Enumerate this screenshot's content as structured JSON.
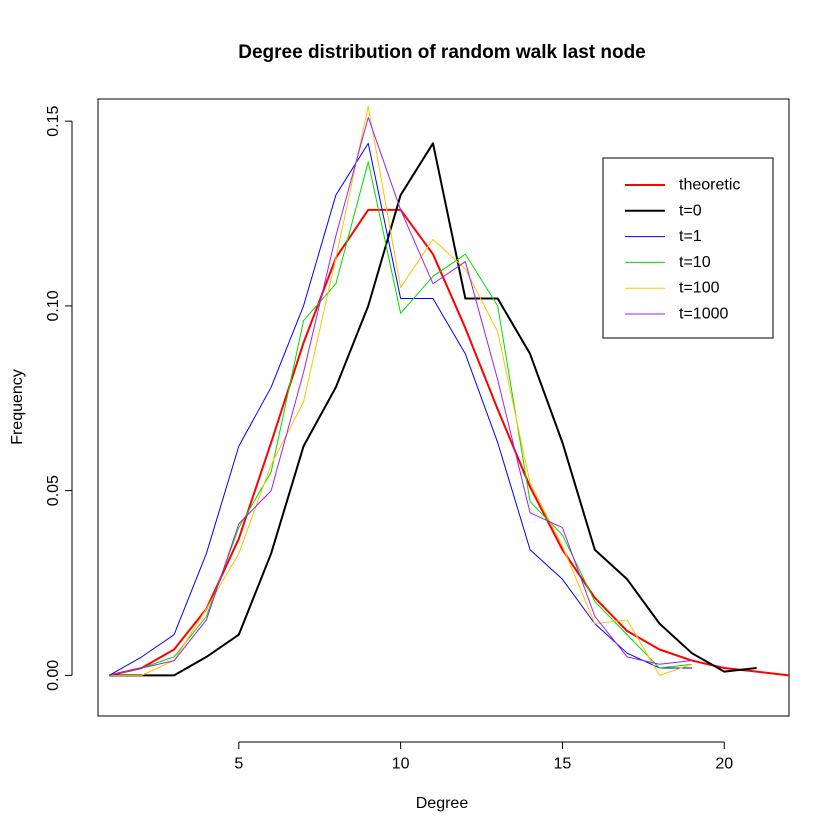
{
  "chart_data": {
    "type": "line",
    "title": "Degree distribution of random walk last node",
    "xlabel": "Degree",
    "ylabel": "Frequency",
    "xlim": [
      0.65,
      22
    ],
    "ylim": [
      -0.011,
      0.156
    ],
    "xticks": [
      5,
      10,
      15,
      20
    ],
    "yticks": [
      0.0,
      0.05,
      0.1,
      0.15
    ],
    "ytick_labels": [
      "0.00",
      "0.05",
      "0.10",
      "0.15"
    ],
    "legend_position": "top-right",
    "grid": false,
    "series": [
      {
        "name": "theoretic",
        "color": "#ff0000",
        "width": 2,
        "x": [
          1,
          2,
          3,
          4,
          5,
          6,
          7,
          8,
          9,
          10,
          11,
          12,
          13,
          14,
          15,
          16,
          17,
          18,
          19,
          20,
          21,
          22
        ],
        "y": [
          0.0,
          0.002,
          0.007,
          0.018,
          0.037,
          0.063,
          0.09,
          0.113,
          0.126,
          0.126,
          0.114,
          0.094,
          0.072,
          0.051,
          0.034,
          0.021,
          0.012,
          0.007,
          0.004,
          0.002,
          0.001,
          0.0
        ]
      },
      {
        "name": "t=0",
        "color": "#000000",
        "width": 2,
        "x": [
          1,
          2,
          3,
          4,
          5,
          6,
          7,
          8,
          9,
          10,
          11,
          12,
          13,
          14,
          15,
          16,
          17,
          18,
          19,
          20,
          21
        ],
        "y": [
          0.0,
          0.0,
          0.0,
          0.005,
          0.011,
          0.033,
          0.062,
          0.078,
          0.1,
          0.13,
          0.144,
          0.102,
          0.102,
          0.087,
          0.063,
          0.034,
          0.026,
          0.014,
          0.006,
          0.001,
          0.002
        ]
      },
      {
        "name": "t=1",
        "color": "#0000ff",
        "width": 1,
        "x": [
          1,
          2,
          3,
          4,
          5,
          6,
          7,
          8,
          9,
          10,
          11,
          12,
          13,
          14,
          15,
          16,
          17,
          18,
          19
        ],
        "y": [
          0.0,
          0.005,
          0.011,
          0.033,
          0.062,
          0.078,
          0.1,
          0.13,
          0.144,
          0.102,
          0.102,
          0.087,
          0.063,
          0.034,
          0.026,
          0.014,
          0.006,
          0.002,
          0.002
        ]
      },
      {
        "name": "t=10",
        "color": "#00dd00",
        "width": 1,
        "x": [
          1,
          2,
          3,
          4,
          5,
          6,
          7,
          8,
          9,
          10,
          11,
          12,
          13,
          14,
          15,
          16,
          17,
          18,
          19
        ],
        "y": [
          0.0,
          0.002,
          0.005,
          0.016,
          0.04,
          0.055,
          0.096,
          0.106,
          0.139,
          0.098,
          0.108,
          0.114,
          0.1,
          0.047,
          0.038,
          0.02,
          0.011,
          0.002,
          0.003
        ]
      },
      {
        "name": "t=100",
        "color": "#ffc000",
        "width": 1,
        "x": [
          1,
          2,
          3,
          4,
          5,
          6,
          7,
          8,
          9,
          10,
          11,
          12,
          13,
          14,
          15,
          16,
          17,
          18,
          19
        ],
        "y": [
          0.0,
          0.0,
          0.004,
          0.018,
          0.033,
          0.057,
          0.074,
          0.113,
          0.154,
          0.105,
          0.118,
          0.11,
          0.093,
          0.052,
          0.035,
          0.014,
          0.015,
          0.0,
          0.003
        ]
      },
      {
        "name": "t=1000",
        "color": "#a020f0",
        "width": 1,
        "x": [
          1,
          2,
          3,
          4,
          5,
          6,
          7,
          8,
          9,
          10,
          11,
          12,
          13,
          14,
          15,
          16,
          17,
          18,
          19
        ],
        "y": [
          0.0,
          0.002,
          0.004,
          0.015,
          0.041,
          0.05,
          0.082,
          0.119,
          0.151,
          0.126,
          0.106,
          0.112,
          0.08,
          0.044,
          0.04,
          0.016,
          0.005,
          0.003,
          0.004
        ]
      }
    ]
  }
}
